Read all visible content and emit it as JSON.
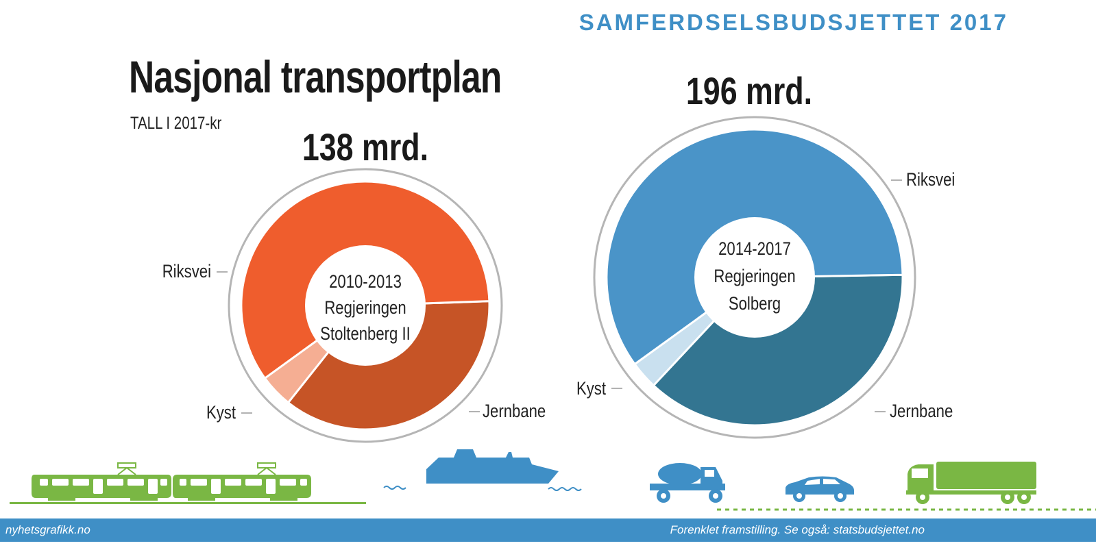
{
  "header": {
    "topright": "SAMFERDSELSBUDSJETTET 2017",
    "title": "Nasjonal transportplan",
    "subtitle": "TALL I 2017-kr"
  },
  "chart_data": [
    {
      "type": "pie",
      "title": "138 mrd.",
      "center_lines": [
        "2010-2013",
        "Regjeringen",
        "Stoltenberg II"
      ],
      "categories": [
        "Riksvei",
        "Jernbane",
        "Kyst"
      ],
      "values": [
        82,
        50,
        6
      ],
      "colors": [
        "#ef5d2d",
        "#c65426",
        "#f5ae93"
      ],
      "unit": "mrd."
    },
    {
      "type": "pie",
      "title": "196 mrd.",
      "center_lines": [
        "2014-2017",
        "Regjeringen",
        "Solberg"
      ],
      "categories": [
        "Riksvei",
        "Jernbane",
        "Kyst"
      ],
      "values": [
        117,
        73,
        6
      ],
      "colors": [
        "#4a94c8",
        "#337591",
        "#c9e0ef"
      ],
      "unit": "mrd."
    }
  ],
  "icons": {
    "train": "train-icon",
    "ship": "ship-icon",
    "truck": "cement-truck-icon",
    "car": "car-icon",
    "lorry": "lorry-icon"
  },
  "colors": {
    "accent": "#3f8fc6",
    "green": "#7ab744"
  },
  "footer": {
    "left": "nyhetsgrafikk.no",
    "right": "Forenklet framstilling. Se også: statsbudsjettet.no"
  }
}
